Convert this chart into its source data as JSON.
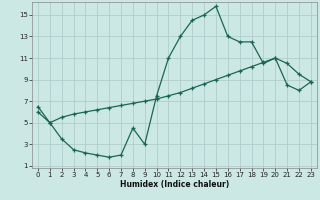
{
  "xlabel": "Humidex (Indice chaleur)",
  "bg_color": "#cce8e4",
  "grid_color": "#b0cccc",
  "line_color": "#1a6655",
  "xlim": [
    -0.5,
    23.5
  ],
  "ylim": [
    0.8,
    16.2
  ],
  "xticks": [
    0,
    1,
    2,
    3,
    4,
    5,
    6,
    7,
    8,
    9,
    10,
    11,
    12,
    13,
    14,
    15,
    16,
    17,
    18,
    19,
    20,
    21,
    22,
    23
  ],
  "yticks": [
    1,
    3,
    5,
    7,
    9,
    11,
    13,
    15
  ],
  "line1_x": [
    0,
    1,
    2,
    3,
    4,
    5,
    6,
    7,
    8,
    9,
    10,
    11,
    12,
    13,
    14,
    15,
    16,
    17,
    18,
    19,
    20,
    21,
    22,
    23
  ],
  "line1_y": [
    6.5,
    5.0,
    3.5,
    2.5,
    2.2,
    2.0,
    1.8,
    2.0,
    4.5,
    3.0,
    7.5,
    11.0,
    13.0,
    14.5,
    15.0,
    15.8,
    13.0,
    12.5,
    12.5,
    10.5,
    11.0,
    10.5,
    9.5,
    8.8
  ],
  "line2_x": [
    0,
    1,
    2,
    3,
    4,
    5,
    6,
    7,
    8,
    9,
    10,
    11,
    12,
    13,
    14,
    15,
    16,
    17,
    18,
    19,
    20,
    21,
    22,
    23
  ],
  "line2_y": [
    6.0,
    5.0,
    5.5,
    5.8,
    6.0,
    6.2,
    6.4,
    6.6,
    6.8,
    7.0,
    7.2,
    7.5,
    7.8,
    8.2,
    8.6,
    9.0,
    9.4,
    9.8,
    10.2,
    10.6,
    11.0,
    8.5,
    8.0,
    8.8
  ]
}
